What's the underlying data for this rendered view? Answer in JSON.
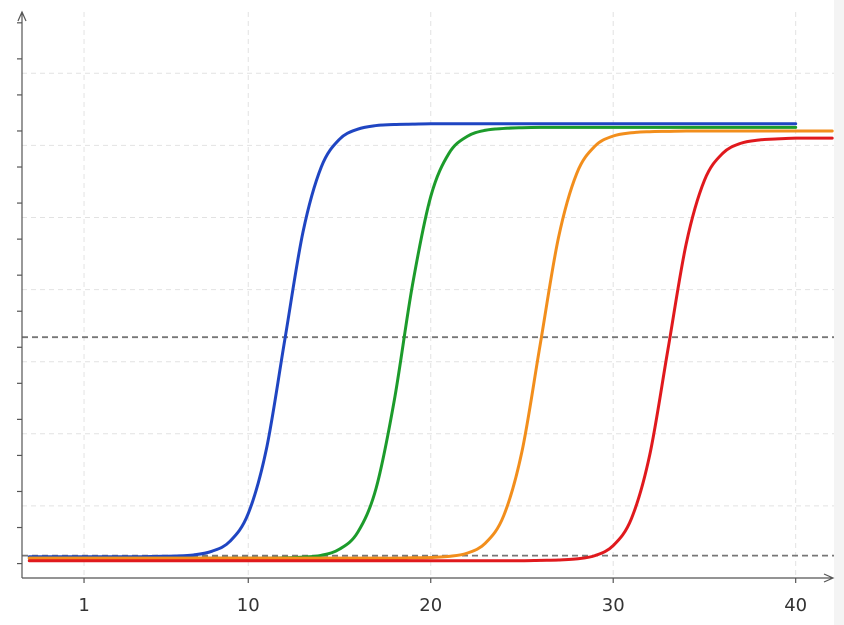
{
  "chart_data": {
    "type": "line",
    "x": [
      -2,
      -1,
      0,
      1,
      2,
      3,
      4,
      5,
      6,
      7,
      8,
      9,
      10,
      11,
      12,
      13,
      14,
      15,
      16,
      17,
      18,
      19,
      20,
      21,
      22,
      23,
      24,
      25,
      26,
      27,
      28,
      29,
      30,
      31,
      32,
      33,
      34,
      35,
      36,
      37,
      38,
      39,
      40,
      41,
      42
    ],
    "xlim": [
      -2.4,
      42.1
    ],
    "xticks": [
      1,
      10,
      20,
      30,
      40
    ],
    "ylim": [
      -0.4,
      15.3
    ],
    "yticks": [
      0,
      1,
      2,
      3,
      4,
      5,
      6,
      7,
      8,
      9,
      10,
      11,
      12,
      13,
      14,
      15
    ],
    "ygrid": [
      1.6,
      3.6,
      5.6,
      7.6,
      9.6,
      11.6,
      13.6
    ],
    "grid": true,
    "threshold_lines": [
      6.28,
      0.22
    ],
    "series": [
      {
        "color": "#1f45c2",
        "values": [
          0.19,
          0.19,
          0.19,
          0.19,
          0.19,
          0.19,
          0.19,
          0.2,
          0.21,
          0.24,
          0.34,
          0.62,
          1.39,
          3.19,
          6.2,
          9.2,
          11.0,
          11.77,
          12.05,
          12.15,
          12.18,
          12.19,
          12.2,
          12.2,
          12.2,
          12.2,
          12.2,
          12.2,
          12.2,
          12.2,
          12.2,
          12.2,
          12.2,
          12.2,
          12.2,
          12.2,
          12.2,
          12.2,
          12.2,
          12.2,
          12.2,
          12.2,
          12.2,
          null,
          null
        ]
      },
      {
        "color": "#1c9b2b",
        "values": [
          0.15,
          0.15,
          0.15,
          0.15,
          0.15,
          0.15,
          0.15,
          0.15,
          0.15,
          0.15,
          0.15,
          0.15,
          0.15,
          0.15,
          0.16,
          0.18,
          0.23,
          0.4,
          0.87,
          2.08,
          4.52,
          7.73,
          10.18,
          11.38,
          11.85,
          12.02,
          12.07,
          12.09,
          12.1,
          12.1,
          12.1,
          12.1,
          12.1,
          12.1,
          12.1,
          12.1,
          12.1,
          12.1,
          12.1,
          12.1,
          12.1,
          12.1,
          12.1,
          null,
          null
        ]
      },
      {
        "color": "#f28e1c",
        "values": [
          0.15,
          0.15,
          0.15,
          0.15,
          0.15,
          0.15,
          0.15,
          0.15,
          0.15,
          0.15,
          0.15,
          0.15,
          0.15,
          0.15,
          0.15,
          0.15,
          0.15,
          0.15,
          0.15,
          0.15,
          0.15,
          0.16,
          0.17,
          0.2,
          0.29,
          0.57,
          1.33,
          3.11,
          6.08,
          9.04,
          10.82,
          11.58,
          11.86,
          11.95,
          11.98,
          11.99,
          12.0,
          12.0,
          12.0,
          12.0,
          12.0,
          12.0,
          12.0,
          12.0,
          12.0
        ]
      },
      {
        "color": "#e0191d",
        "values": [
          0.08,
          0.08,
          0.08,
          0.08,
          0.08,
          0.08,
          0.08,
          0.08,
          0.08,
          0.08,
          0.08,
          0.08,
          0.08,
          0.08,
          0.08,
          0.08,
          0.08,
          0.08,
          0.08,
          0.08,
          0.08,
          0.08,
          0.08,
          0.08,
          0.08,
          0.08,
          0.08,
          0.08,
          0.09,
          0.1,
          0.13,
          0.22,
          0.5,
          1.25,
          3.01,
          5.94,
          8.87,
          10.63,
          11.38,
          11.66,
          11.75,
          11.78,
          11.8,
          11.8,
          11.8
        ]
      }
    ]
  }
}
